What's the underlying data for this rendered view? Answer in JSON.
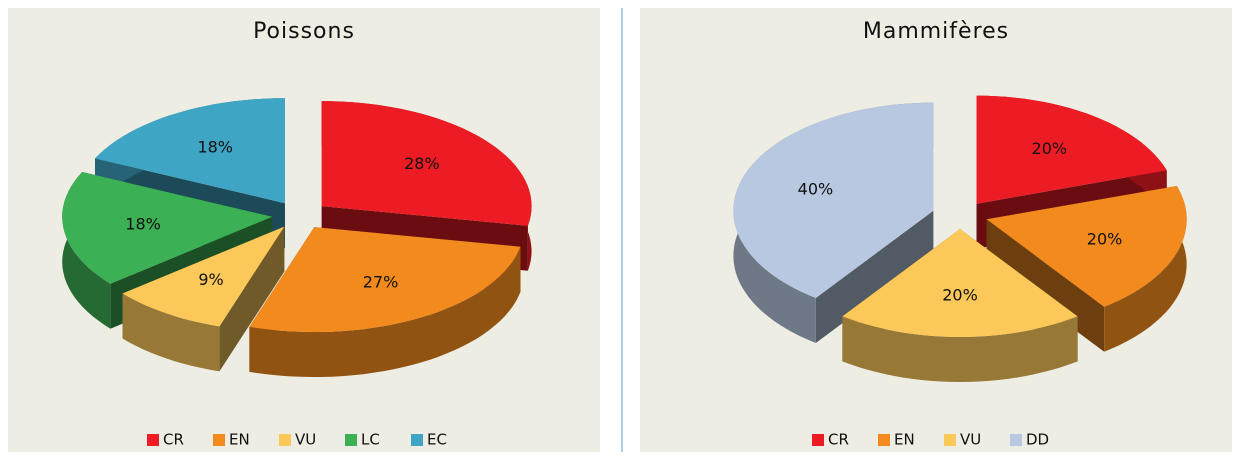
{
  "chart_data": [
    {
      "type": "pie",
      "title": "Poissons",
      "categories": [
        "CR",
        "EN",
        "VU",
        "LC",
        "EC"
      ],
      "values": [
        28,
        27,
        9,
        18,
        18
      ],
      "value_labels": [
        "28%",
        "27%",
        "9%",
        "18%",
        "18%"
      ],
      "colors": [
        "#ed1c24",
        "#f28a1e",
        "#fcc85a",
        "#3cb054",
        "#3fa5c4"
      ],
      "legend": "bottom"
    },
    {
      "type": "pie",
      "title": "Mammifères",
      "categories": [
        "CR",
        "EN",
        "VU",
        "DD"
      ],
      "values": [
        20,
        20,
        20,
        40
      ],
      "value_labels": [
        "20%",
        "20%",
        "20%",
        "40%"
      ],
      "colors": [
        "#ed1c24",
        "#f28a1e",
        "#fcc85a",
        "#b7c8e0"
      ],
      "legend": "bottom"
    }
  ]
}
